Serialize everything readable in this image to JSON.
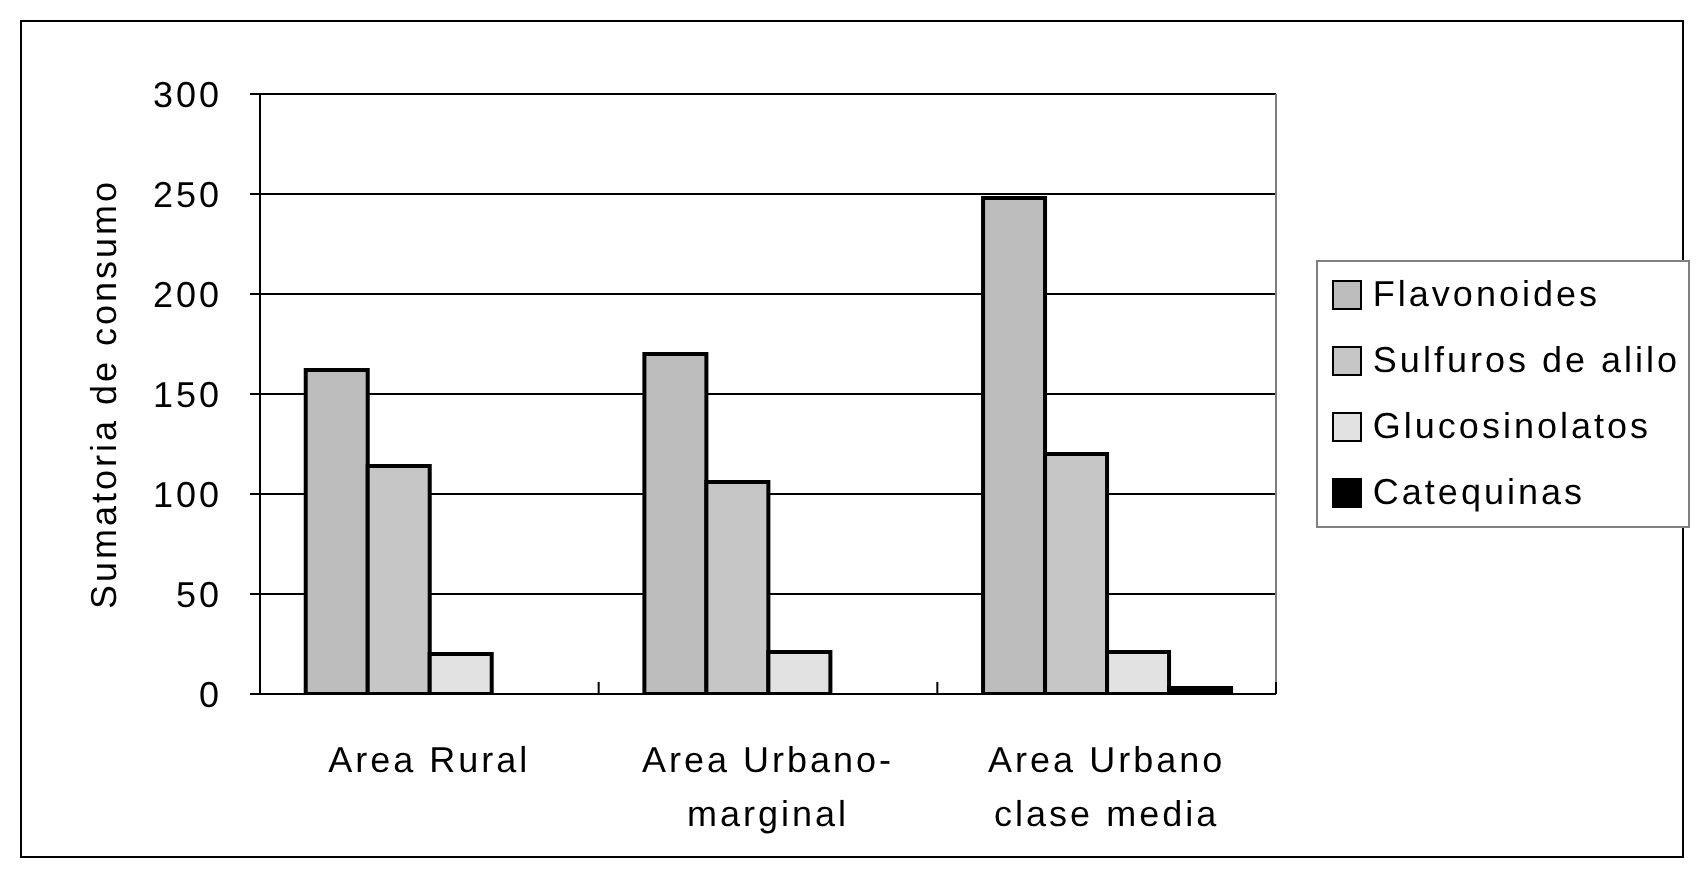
{
  "chart_data": {
    "type": "bar",
    "ylabel": "Sumatoria de consumo",
    "categories": [
      "Area Rural",
      "Area Urbano-marginal",
      "Area Urbano clase media"
    ],
    "series": [
      {
        "name": "Flavonoides",
        "color": "#bdbdbd",
        "values": [
          162,
          170,
          248
        ]
      },
      {
        "name": "Sulfuros de alilo",
        "color": "#c6c6c6",
        "values": [
          114,
          106,
          120
        ]
      },
      {
        "name": "Glucosinolatos",
        "color": "#e2e2e2",
        "values": [
          20,
          21,
          21
        ]
      },
      {
        "name": "Catequinas",
        "color": "#000000",
        "values": [
          null,
          null,
          3
        ]
      }
    ],
    "ylim": [
      0,
      300
    ],
    "yticks": [
      0,
      50,
      100,
      150,
      200,
      250,
      300
    ],
    "grid": "y",
    "legend": "right"
  }
}
